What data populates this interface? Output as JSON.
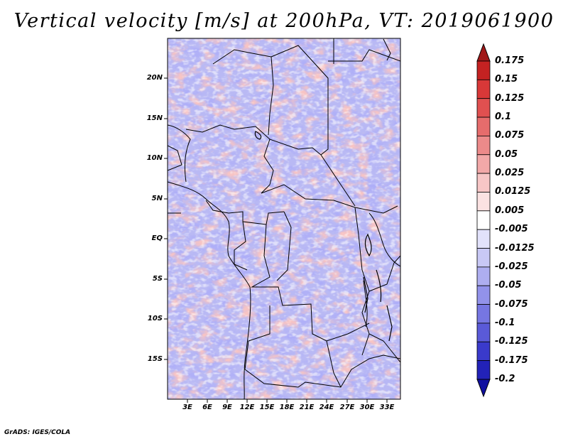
{
  "title": "Vertical velocity [m/s] at 200hPa, VT: 2019061900",
  "footer": "GrADS: IGES/COLA",
  "y_axis_labels": [
    "20N",
    "15N",
    "10N",
    "5N",
    "EQ",
    "5S",
    "10S",
    "15S"
  ],
  "x_axis_labels": [
    "3E",
    "6E",
    "9E",
    "12E",
    "15E",
    "18E",
    "21E",
    "24E",
    "27E",
    "30E",
    "33E"
  ],
  "colorbar": {
    "labels": [
      "0.175",
      "0.15",
      "0.125",
      "0.1",
      "0.075",
      "0.05",
      "0.025",
      "0.0125",
      "0.005",
      "-0.005",
      "-0.0125",
      "-0.025",
      "-0.05",
      "-0.075",
      "-0.1",
      "-0.125",
      "-0.175",
      "-0.2"
    ],
    "colors": [
      "#a01818",
      "#c42222",
      "#d83838",
      "#e05050",
      "#e66c6c",
      "#ec8a8a",
      "#f2a8a8",
      "#f7c6c6",
      "#fbe2e2",
      "#ffffff",
      "#e2e2fb",
      "#c8c8f5",
      "#aeaef0",
      "#9292ea",
      "#7676e2",
      "#5a5ad8",
      "#3a3acb",
      "#2222b8",
      "#1010a0"
    ]
  },
  "map": {
    "variable": "vertical velocity",
    "level_hpa": 200,
    "valid_time": "2019061900",
    "lon_range": [
      0,
      35
    ],
    "lat_range": [
      -20,
      24
    ]
  }
}
